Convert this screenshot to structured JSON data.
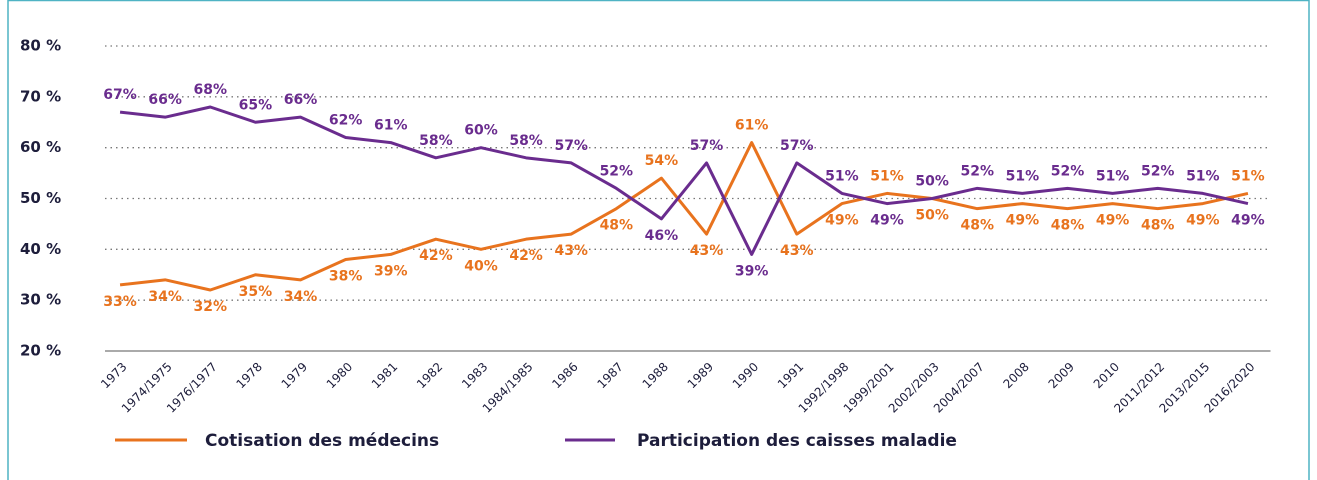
{
  "chart_data": {
    "type": "line",
    "categories": [
      "1973",
      "1974/1975",
      "1976/1977",
      "1978",
      "1979",
      "1980",
      "1981",
      "1982",
      "1983",
      "1984/1985",
      "1986",
      "1987",
      "1988",
      "1989",
      "1990",
      "1991",
      "1992/1998",
      "1999/2001",
      "2002/2003",
      "2004/2007",
      "2008",
      "2009",
      "2010",
      "2011/2012",
      "2013/2015",
      "2016/2020"
    ],
    "series": [
      {
        "name": "Cotisation des médecins",
        "color": "#e8731e",
        "values": [
          33,
          34,
          32,
          35,
          34,
          38,
          39,
          42,
          40,
          42,
          43,
          48,
          54,
          43,
          61,
          43,
          49,
          51,
          50,
          48,
          49,
          48,
          49,
          48,
          49,
          51
        ],
        "value_labels": [
          "33%",
          "34%",
          "32%",
          "35%",
          "34%",
          "38%",
          "39%",
          "42%",
          "40%",
          "42%",
          "43%",
          "48%",
          "54%",
          "43%",
          "61%",
          "43%",
          "49%",
          "51%",
          "50%",
          "48%",
          "49%",
          "48%",
          "49%",
          "48%",
          "49%",
          "51%"
        ]
      },
      {
        "name": "Participation des caisses maladie",
        "color": "#6a2c8e",
        "values": [
          67,
          66,
          68,
          65,
          66,
          62,
          61,
          58,
          60,
          58,
          57,
          52,
          46,
          57,
          39,
          57,
          51,
          49,
          50,
          52,
          51,
          52,
          51,
          52,
          51,
          49
        ],
        "value_labels": [
          "67%",
          "66%",
          "68%",
          "65%",
          "66%",
          "62%",
          "61%",
          "58%",
          "60%",
          "58%",
          "57%",
          "52%",
          "46%",
          "57%",
          "39%",
          "57%",
          "51%",
          "49%",
          "50%",
          "52%",
          "51%",
          "52%",
          "51%",
          "52%",
          "51%",
          "49%"
        ]
      }
    ],
    "ylim": [
      20,
      80
    ],
    "yticks": [
      {
        "value": 20,
        "label": "20 %"
      },
      {
        "value": 30,
        "label": "30 %"
      },
      {
        "value": 40,
        "label": "40 %"
      },
      {
        "value": 50,
        "label": "50 %"
      },
      {
        "value": 60,
        "label": "60 %"
      },
      {
        "value": 70,
        "label": "70 %"
      },
      {
        "value": 80,
        "label": "80 %"
      }
    ],
    "grid": true
  }
}
